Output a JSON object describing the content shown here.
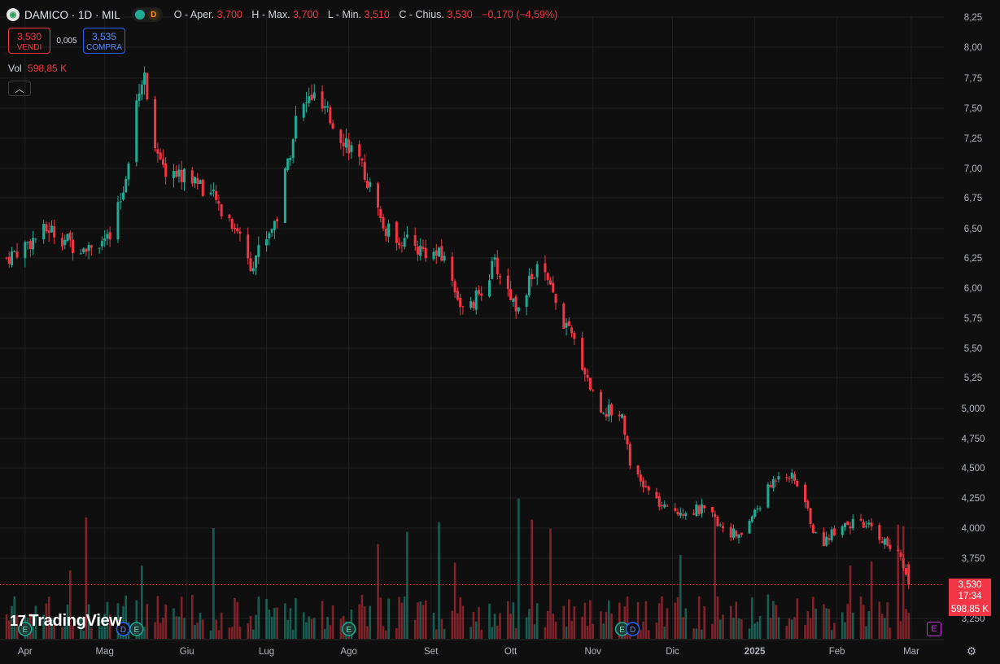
{
  "header": {
    "logo_glyph": "◉",
    "symbol": "DAMICO · 1D · MIL",
    "d_badge": "D",
    "open_label": "O - Aper.",
    "open": "3,700",
    "high_label": "H - Max.",
    "high": "3,700",
    "low_label": "L - Min.",
    "low": "3,510",
    "close_label": "C - Chius.",
    "close": "3,530",
    "change": "−0,170 (−4,59%)"
  },
  "trade": {
    "sell_price": "3,530",
    "sell_label": "VENDI",
    "spread": "0,005",
    "buy_price": "3,535",
    "buy_label": "COMPRA"
  },
  "volume": {
    "label": "Vol",
    "value": "598,85 K"
  },
  "collapse_glyph": "︿",
  "branding": {
    "mark": "17",
    "name": "TradingView"
  },
  "price_tag": {
    "price": "3,530",
    "countdown": "17:34",
    "volume": "598,85 K"
  },
  "colors": {
    "up": "#22ab94",
    "down": "#f23645",
    "background": "#0f0f0f",
    "grid": "#1f1f1f"
  },
  "icons": {
    "gear": "gear-icon",
    "earnings_badge": "E",
    "dividend_badge": "D"
  },
  "chart_data": {
    "type": "candlestick",
    "y_axis_labels": [
      "8,25",
      "8,00",
      "7,75",
      "7,50",
      "7,25",
      "7,00",
      "6,75",
      "6,50",
      "6,25",
      "6,00",
      "5,75",
      "5,50",
      "5,25",
      "5,000",
      "4,750",
      "4,500",
      "4,250",
      "4,000",
      "3,750",
      "3,250"
    ],
    "y_axis_values": [
      8.25,
      8.0,
      7.75,
      7.5,
      7.25,
      7.0,
      6.75,
      6.5,
      6.25,
      6.0,
      5.75,
      5.5,
      5.25,
      5.0,
      4.75,
      4.5,
      4.25,
      4.0,
      3.75,
      3.25
    ],
    "x_axis_labels": [
      "Apr",
      "Mag",
      "Giu",
      "Lug",
      "Ago",
      "Set",
      "Ott",
      "Nov",
      "Dic",
      "2025",
      "Feb",
      "Mar"
    ],
    "ylim": [
      3.2,
      8.3
    ],
    "last_price": 3.53,
    "close_path": [
      [
        "2024-03-25",
        6.25
      ],
      [
        "2024-04-10",
        6.5
      ],
      [
        "2024-04-20",
        6.35
      ],
      [
        "2024-05-03",
        6.4
      ],
      [
        "2024-05-08",
        6.8
      ],
      [
        "2024-05-13",
        7.6
      ],
      [
        "2024-05-16",
        7.75
      ],
      [
        "2024-05-22",
        7.0
      ],
      [
        "2024-06-05",
        6.9
      ],
      [
        "2024-06-20",
        6.5
      ],
      [
        "2024-06-25",
        6.2
      ],
      [
        "2024-07-05",
        6.6
      ],
      [
        "2024-07-12",
        7.4
      ],
      [
        "2024-07-18",
        7.6
      ],
      [
        "2024-08-01",
        7.2
      ],
      [
        "2024-08-08",
        6.9
      ],
      [
        "2024-08-14",
        6.5
      ],
      [
        "2024-08-25",
        6.35
      ],
      [
        "2024-09-06",
        6.25
      ],
      [
        "2024-09-14",
        5.75
      ],
      [
        "2024-09-25",
        6.2
      ],
      [
        "2024-10-03",
        5.85
      ],
      [
        "2024-10-12",
        6.2
      ],
      [
        "2024-10-20",
        5.75
      ],
      [
        "2024-10-25",
        5.55
      ],
      [
        "2024-11-03",
        5.0
      ],
      [
        "2024-11-12",
        4.95
      ],
      [
        "2024-11-16",
        4.45
      ],
      [
        "2024-11-28",
        4.15
      ],
      [
        "2024-12-12",
        4.15
      ],
      [
        "2024-12-26",
        3.92
      ],
      [
        "2025-01-03",
        4.2
      ],
      [
        "2025-01-11",
        4.5
      ],
      [
        "2025-01-18",
        4.35
      ],
      [
        "2025-01-25",
        3.85
      ],
      [
        "2025-02-03",
        4.05
      ],
      [
        "2025-02-14",
        4.0
      ],
      [
        "2025-02-25",
        3.75
      ],
      [
        "2025-03-01",
        3.53
      ]
    ],
    "volume_max_k": 1200
  }
}
